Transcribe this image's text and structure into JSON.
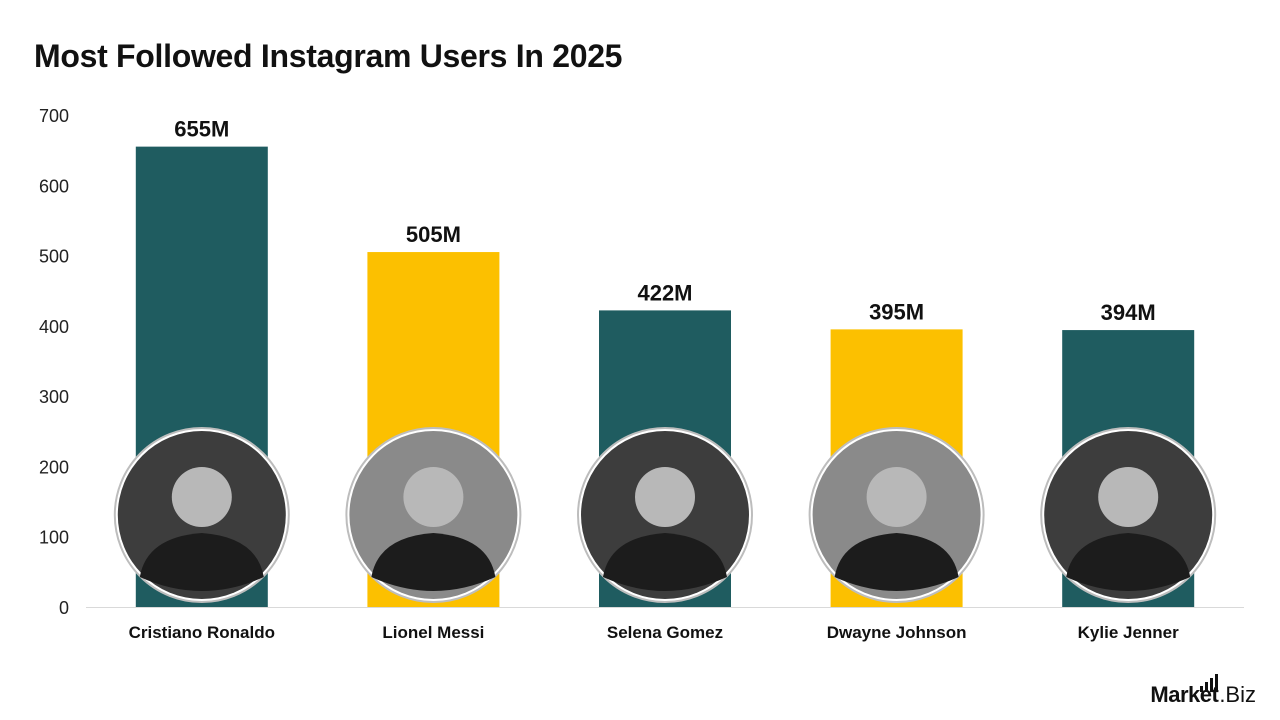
{
  "title": "Most Followed Instagram Users In 2025",
  "colors": {
    "teal": "#1f5c60",
    "yellow": "#fcc000",
    "axis": "#d9d9d9",
    "text": "#111111",
    "tick": "#222222"
  },
  "logo": {
    "market": "Market",
    "biz": ".Biz"
  },
  "chart_data": {
    "type": "bar",
    "title": "Most Followed Instagram Users In 2025",
    "categories": [
      "Cristiano Ronaldo",
      "Lionel Messi",
      "Selena Gomez",
      "Dwayne Johnson",
      "Kylie Jenner"
    ],
    "values": [
      655,
      505,
      422,
      395,
      394
    ],
    "data_labels": [
      "655M",
      "505M",
      "422M",
      "395M",
      "394M"
    ],
    "bar_colors": [
      "#1f5c60",
      "#fcc000",
      "#1f5c60",
      "#fcc000",
      "#1f5c60"
    ],
    "yticks": [
      0,
      100,
      200,
      300,
      400,
      500,
      600,
      700
    ],
    "ylim": [
      0,
      700
    ],
    "xlabel": "",
    "ylabel": "",
    "grid": false,
    "legend": "none",
    "portrait_icons": [
      "person-portrait-icon",
      "person-portrait-icon",
      "person-portrait-icon",
      "person-portrait-icon",
      "person-portrait-icon"
    ]
  }
}
